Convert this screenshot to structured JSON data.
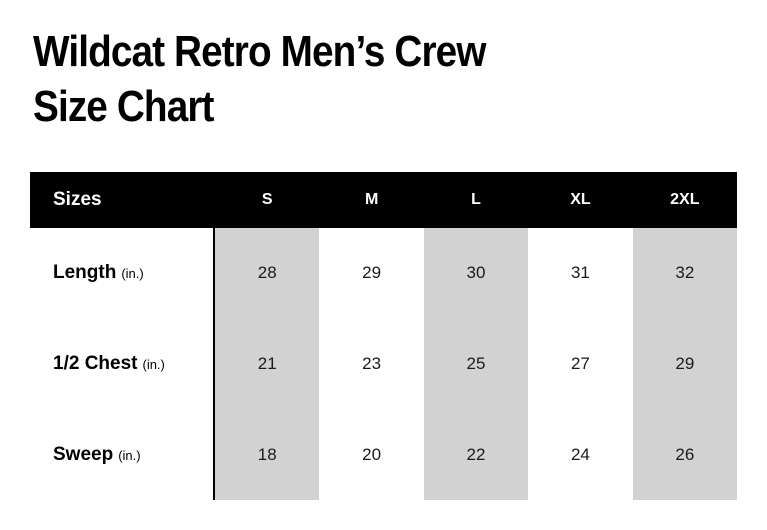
{
  "title": {
    "line1": "Wildcat Retro Men’s Crew",
    "line2": "Size Chart"
  },
  "table": {
    "corner_label": "Sizes",
    "columns": [
      "S",
      "M",
      "L",
      "XL",
      "2XL"
    ],
    "rows": [
      {
        "label": "Length",
        "unit": "(in.)",
        "values": [
          "28",
          "29",
          "30",
          "31",
          "32"
        ]
      },
      {
        "label": "1/2 Chest",
        "unit": "(in.)",
        "values": [
          "21",
          "23",
          "25",
          "27",
          "29"
        ]
      },
      {
        "label": "Sweep",
        "unit": "(in.)",
        "values": [
          "18",
          "20",
          "22",
          "24",
          "26"
        ]
      }
    ],
    "shaded_columns": [
      0,
      2,
      4
    ]
  },
  "colors": {
    "header_bg": "#000000",
    "header_text": "#ffffff",
    "column_shade": "#d2d2d2",
    "text": "#1a1a1a",
    "background": "#ffffff"
  },
  "chart_data": {
    "type": "table",
    "title": "Wildcat Retro Men’s Crew Size Chart",
    "columns": [
      "Sizes",
      "S",
      "M",
      "L",
      "XL",
      "2XL"
    ],
    "rows": [
      [
        "Length (in.)",
        28,
        29,
        30,
        31,
        32
      ],
      [
        "1/2 Chest (in.)",
        21,
        23,
        25,
        27,
        29
      ],
      [
        "Sweep (in.)",
        18,
        20,
        22,
        24,
        26
      ]
    ],
    "layout": {
      "shaded_columns": [
        "S",
        "L",
        "2XL"
      ],
      "header_style": "black-bar-white-text",
      "grid": "off"
    }
  }
}
